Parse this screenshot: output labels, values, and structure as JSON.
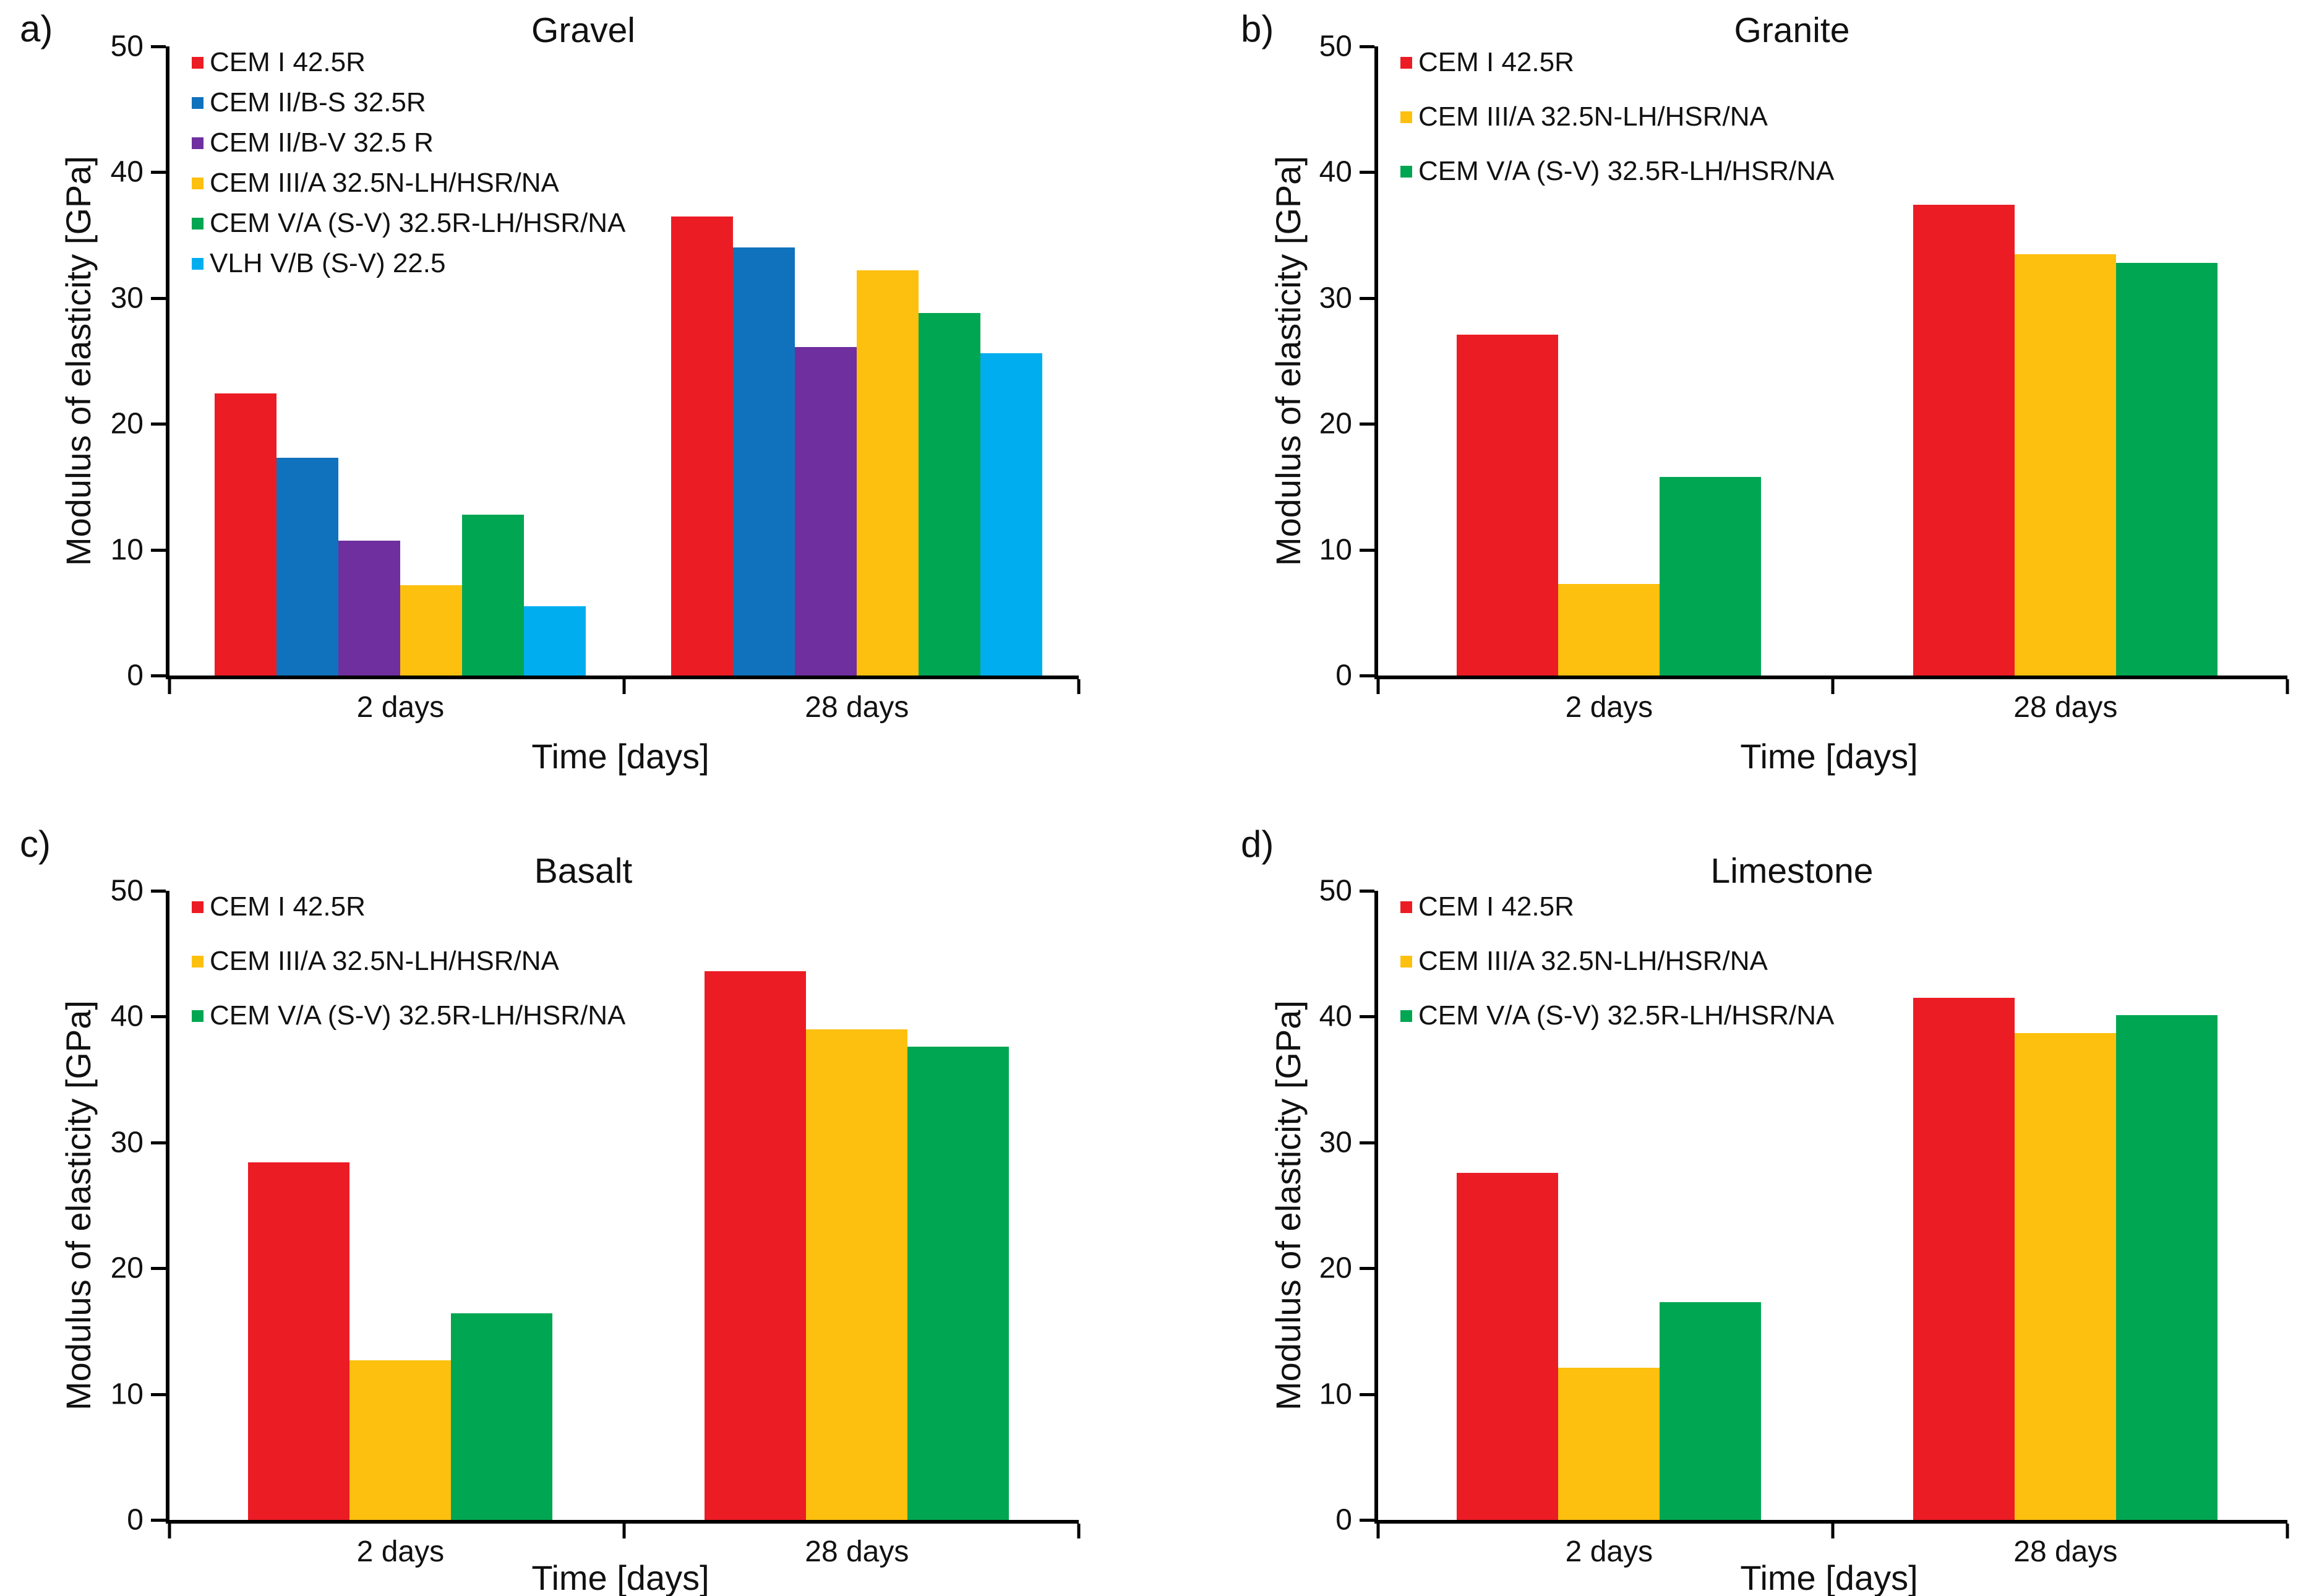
{
  "figure": {
    "background": "#ffffff",
    "axis_color": "#000000",
    "text_color": "#111111"
  },
  "chart_data": [
    {
      "type": "bar",
      "panel_letter": "a)",
      "title": "Gravel",
      "xlabel": "Time [days]",
      "ylabel": "Modulus of elasticity [GPa]",
      "categories": [
        "2 days",
        "28 days"
      ],
      "ylim": [
        0,
        50
      ],
      "ytick_step": 10,
      "grid": false,
      "legend_position": "top-left-inside",
      "series": [
        {
          "name": "CEM I 42.5R",
          "color": "#EC1C24",
          "values": [
            22.4,
            36.5
          ]
        },
        {
          "name": "CEM II/B-S 32.5R",
          "color": "#1072BC",
          "values": [
            17.3,
            34.0
          ]
        },
        {
          "name": "CEM II/B-V 32.5 R",
          "color": "#6F2F9F",
          "values": [
            10.7,
            26.1
          ]
        },
        {
          "name": "CEM III/A 32.5N-LH/HSR/NA",
          "color": "#FEC00F",
          "values": [
            7.2,
            32.2
          ]
        },
        {
          "name": "CEM V/A (S-V) 32.5R-LH/HSR/NA",
          "color": "#00A651",
          "values": [
            12.8,
            28.8
          ]
        },
        {
          "name": "VLH V/B (S-V) 22.5",
          "color": "#00AEEF",
          "values": [
            5.5,
            25.6
          ]
        }
      ]
    },
    {
      "type": "bar",
      "panel_letter": "b)",
      "title": "Granite",
      "xlabel": "Time [days]",
      "ylabel": "Modulus of elasticity [GPa]",
      "categories": [
        "2 days",
        "28 days"
      ],
      "ylim": [
        0,
        50
      ],
      "ytick_step": 10,
      "grid": false,
      "legend_position": "top-left-inside",
      "series": [
        {
          "name": "CEM I 42.5R",
          "color": "#EC1C24",
          "values": [
            27.1,
            37.4
          ]
        },
        {
          "name": "CEM III/A 32.5N-LH/HSR/NA",
          "color": "#FEC00F",
          "values": [
            7.3,
            33.5
          ]
        },
        {
          "name": "CEM V/A (S-V) 32.5R-LH/HSR/NA",
          "color": "#00A651",
          "values": [
            15.8,
            32.8
          ]
        }
      ]
    },
    {
      "type": "bar",
      "panel_letter": "c)",
      "title": "Basalt",
      "xlabel": "Time [days]",
      "ylabel": "Modulus of elasticity [GPa]",
      "categories": [
        "2 days",
        "28 days"
      ],
      "ylim": [
        0,
        50
      ],
      "ytick_step": 10,
      "grid": false,
      "legend_position": "top-left-inside",
      "series": [
        {
          "name": "CEM I 42.5R",
          "color": "#EC1C24",
          "values": [
            28.4,
            43.6
          ]
        },
        {
          "name": "CEM III/A 32.5N-LH/HSR/NA",
          "color": "#FEC00F",
          "values": [
            12.7,
            39.0
          ]
        },
        {
          "name": "CEM V/A (S-V) 32.5R-LH/HSR/NA",
          "color": "#00A651",
          "values": [
            16.4,
            37.6
          ]
        }
      ]
    },
    {
      "type": "bar",
      "panel_letter": "d)",
      "title": "Limestone",
      "xlabel": "Time [days]",
      "ylabel": "Modulus of elasticity [GPa]",
      "categories": [
        "2 days",
        "28 days"
      ],
      "ylim": [
        0,
        50
      ],
      "ytick_step": 10,
      "grid": false,
      "legend_position": "top-left-inside",
      "series": [
        {
          "name": "CEM I 42.5R",
          "color": "#EC1C24",
          "values": [
            27.6,
            41.5
          ]
        },
        {
          "name": "CEM III/A 32.5N-LH/HSR/NA",
          "color": "#FEC00F",
          "values": [
            12.1,
            38.7
          ]
        },
        {
          "name": "CEM V/A (S-V) 32.5R-LH/HSR/NA",
          "color": "#00A651",
          "values": [
            17.3,
            40.1
          ]
        }
      ]
    }
  ]
}
